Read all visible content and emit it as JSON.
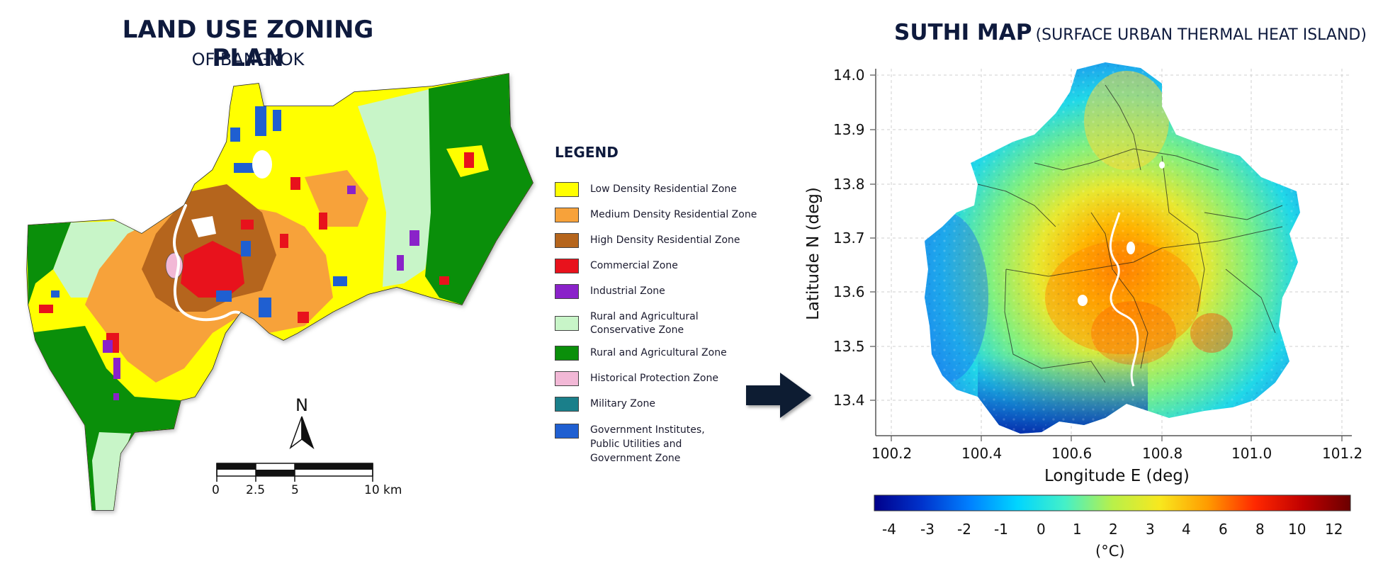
{
  "left_map": {
    "title": "LAND USE ZONING PLAN",
    "subtitle": "OF BANGKOK",
    "north_label": "N",
    "scale_labels": [
      "0",
      "2.5",
      "5",
      "10 km"
    ],
    "zone_colors": {
      "low_density": "#ffff00",
      "medium_density": "#f7a23a",
      "high_density": "#b5651d",
      "commercial": "#e8121c",
      "industrial": "#8a22c9",
      "rural_conservative": "#c8f5c8",
      "rural_agricultural": "#0a8f0a",
      "historical": "#f2b8d6",
      "military": "#1a7f8a",
      "government": "#1f5fd1"
    }
  },
  "legend": {
    "title": "LEGEND",
    "items": [
      {
        "label": "Low Density Residential Zone",
        "color": "#ffff00"
      },
      {
        "label": "Medium Density Residential Zone",
        "color": "#f7a23a"
      },
      {
        "label": "High Density Residential Zone",
        "color": "#b5651d"
      },
      {
        "label": "Commercial Zone",
        "color": "#e8121c"
      },
      {
        "label": "Industrial Zone",
        "color": "#8a22c9"
      },
      {
        "label": "Rural and Agricultural Conservative Zone",
        "color": "#c8f5c8"
      },
      {
        "label": "Rural and Agricultural Zone",
        "color": "#0a8f0a"
      },
      {
        "label": "Historical Protection Zone",
        "color": "#f2b8d6"
      },
      {
        "label": "Military Zone",
        "color": "#1a7f8a"
      },
      {
        "label": "Government Institutes, Public Utilities and Government Zone",
        "color": "#1f5fd1"
      }
    ]
  },
  "arrow_color": "#0f1a33",
  "right_map": {
    "title": "SUTHI MAP",
    "title_paren": "(SURFACE URBAN THERMAL HEAT ISLAND)",
    "x_axis_label": "Longitude E (deg)",
    "y_axis_label": "Latitude N (deg)",
    "x_ticks": [
      "100.2",
      "100.4",
      "100.6",
      "100.8",
      "101.0",
      "101.2"
    ],
    "y_ticks": [
      "14.0",
      "13.9",
      "13.8",
      "13.7",
      "13.6",
      "13.5",
      "13.4"
    ],
    "x_range": [
      100.2,
      101.2
    ],
    "y_range": [
      13.4,
      14.0
    ],
    "colorbar_ticks": [
      "-4",
      "-3",
      "-2",
      "-1",
      "0",
      "1",
      "2",
      "3",
      "4",
      "6",
      "8",
      "10",
      "12"
    ],
    "colorbar_unit": "(°C)",
    "colormap": [
      "#00008b",
      "#0033cc",
      "#0080ff",
      "#00d5ff",
      "#44f0c8",
      "#b8f04a",
      "#f8e81e",
      "#ff9b00",
      "#ff2800",
      "#c00000",
      "#6b0000"
    ]
  }
}
